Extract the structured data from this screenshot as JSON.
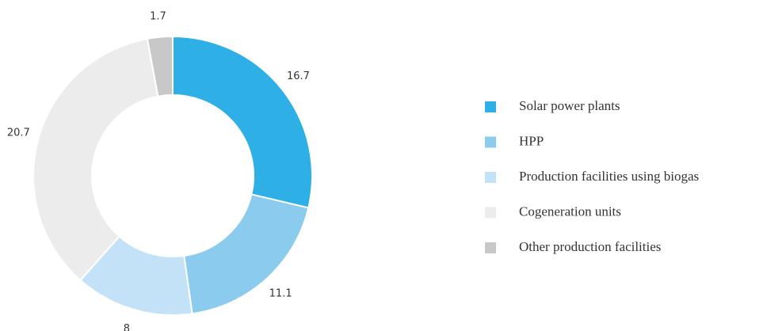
{
  "chart_data": {
    "type": "pie",
    "categories": [
      "Solar power plants",
      "HPP",
      "Production facilities using biogas",
      "Cogeneration units",
      "Other production facilities"
    ],
    "values": [
      16.7,
      11.1,
      8,
      20.7,
      1.7
    ],
    "colors": [
      "#2eb0e6",
      "#8acbee",
      "#c4e2f7",
      "#ececec",
      "#c8c8c8"
    ],
    "donut": true,
    "legend": "right"
  }
}
